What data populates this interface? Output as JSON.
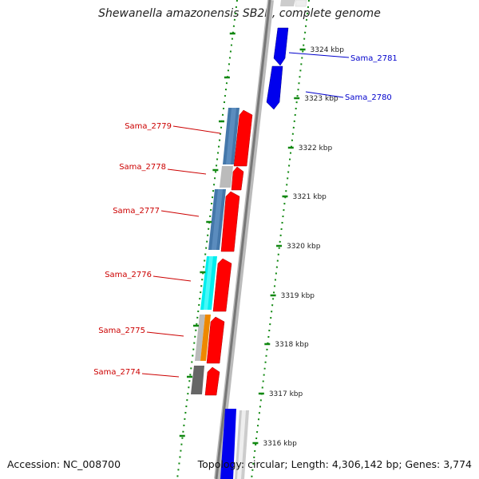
{
  "title": "Shewanella amazonensis SB2B, complete genome",
  "accession": "Accession: NC_008700",
  "topology": "Topology: circular; Length: 4,306,142 bp; Genes: 3,774",
  "colors": {
    "forward_gene": "#ff0000",
    "reverse_gene": "#0000ee",
    "forward_label": "#cc0000",
    "reverse_label": "#0000cc",
    "tick": "#118811",
    "backbone": "#888888"
  },
  "ticks": [
    {
      "label": "3324 kbp"
    },
    {
      "label": "3323 kbp"
    },
    {
      "label": "3322 kbp"
    },
    {
      "label": "3321 kbp"
    },
    {
      "label": "3320 kbp"
    },
    {
      "label": "3319 kbp"
    },
    {
      "label": "3318 kbp"
    },
    {
      "label": "3317 kbp"
    },
    {
      "label": "3316 kbp"
    }
  ],
  "genes": [
    {
      "name": "Sama_2781",
      "strand": "reverse"
    },
    {
      "name": "Sama_2780",
      "strand": "reverse"
    },
    {
      "name": "Sama_2779",
      "strand": "forward"
    },
    {
      "name": "Sama_2778",
      "strand": "forward"
    },
    {
      "name": "Sama_2777",
      "strand": "forward"
    },
    {
      "name": "Sama_2776",
      "strand": "forward"
    },
    {
      "name": "Sama_2775",
      "strand": "forward"
    },
    {
      "name": "Sama_2774",
      "strand": "forward"
    }
  ]
}
